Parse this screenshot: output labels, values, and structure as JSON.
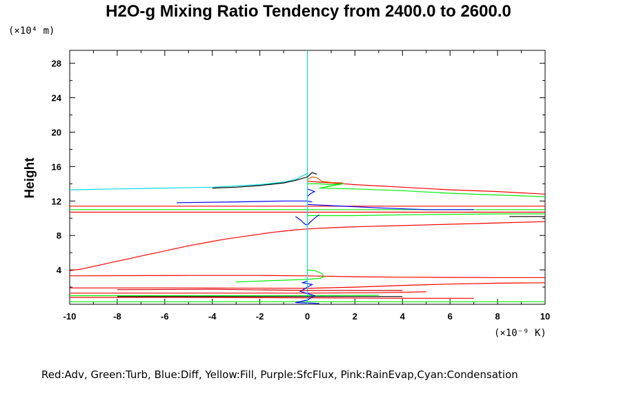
{
  "chart_data": {
    "type": "line",
    "title": "H2O-g Mixing Ratio Tendency from 2400.0 to 2600.0",
    "ylabel": "Height",
    "y_scale_label": "(×10⁴ m)",
    "x_scale_label": "(×10⁻⁹ K)",
    "legend_text": "Red:Adv, Green:Turb, Blue:Diff, Yellow:Fill, Purple:SfcFlux, Pink:RainEvap,Cyan:Condensation",
    "xlim": [
      -10,
      10
    ],
    "ylim": [
      0,
      29.5
    ],
    "x_ticks": [
      -10,
      -8,
      -6,
      -4,
      -2,
      0,
      2,
      4,
      6,
      8,
      10
    ],
    "y_ticks": [
      4,
      8,
      12,
      16,
      20,
      24,
      28
    ],
    "x_tick_labels": [
      "-10",
      "-8",
      "-6",
      "-4",
      "-2",
      "0",
      "2",
      "4",
      "6",
      "8",
      "10"
    ],
    "y_tick_labels": [
      "4",
      "8",
      "12",
      "16",
      "20",
      "24",
      "28"
    ],
    "grid": false,
    "series": [
      {
        "color": "#ff0000",
        "points": [
          [
            -10,
            3.9
          ],
          [
            -9.5,
            4.1
          ],
          [
            -9,
            4.4
          ],
          [
            -8.5,
            4.7
          ],
          [
            -8,
            5.0
          ],
          [
            -7.5,
            5.3
          ],
          [
            -7,
            5.6
          ],
          [
            -6.5,
            5.9
          ],
          [
            -6,
            6.2
          ],
          [
            -5.5,
            6.5
          ],
          [
            -5,
            6.8
          ],
          [
            -4.5,
            7.05
          ],
          [
            -4,
            7.3
          ],
          [
            -3.5,
            7.55
          ],
          [
            -3,
            7.75
          ],
          [
            -2.5,
            7.95
          ],
          [
            -2,
            8.15
          ],
          [
            -1.5,
            8.35
          ],
          [
            -1,
            8.5
          ],
          [
            -0.5,
            8.65
          ],
          [
            0,
            8.75
          ],
          [
            1,
            8.9
          ],
          [
            2,
            9.0
          ],
          [
            4,
            9.15
          ],
          [
            6,
            9.3
          ],
          [
            8,
            9.45
          ],
          [
            10,
            9.6
          ]
        ]
      },
      {
        "color": "#ff0000",
        "points": [
          [
            -10,
            3.3
          ],
          [
            -5,
            3.35
          ],
          [
            -2,
            3.35
          ],
          [
            0,
            3.3
          ],
          [
            2,
            3.2
          ],
          [
            4,
            3.15
          ],
          [
            6,
            3.12
          ],
          [
            8,
            3.1
          ],
          [
            10,
            3.1
          ]
        ]
      },
      {
        "color": "#ff0000",
        "points": [
          [
            0,
            14.3
          ],
          [
            1,
            14.1
          ],
          [
            2,
            13.9
          ],
          [
            4,
            13.6
          ],
          [
            6,
            13.3
          ],
          [
            8,
            13.1
          ],
          [
            10,
            12.8
          ]
        ]
      },
      {
        "color": "#ff0000",
        "points": [
          [
            -10,
            11.4
          ],
          [
            -5,
            11.4
          ],
          [
            0,
            11.4
          ],
          [
            5,
            11.4
          ],
          [
            10,
            11.4
          ]
        ]
      },
      {
        "color": "#ff0000",
        "points": [
          [
            -10,
            10.7
          ],
          [
            -5,
            10.7
          ],
          [
            0,
            10.7
          ],
          [
            5,
            10.7
          ],
          [
            10,
            10.7
          ]
        ]
      },
      {
        "color": "#ff0000",
        "points": [
          [
            -10,
            1.9
          ],
          [
            -5,
            1.9
          ],
          [
            0,
            1.85
          ],
          [
            2,
            2.0
          ],
          [
            4,
            2.2
          ],
          [
            6,
            2.35
          ],
          [
            8,
            2.45
          ],
          [
            10,
            2.5
          ]
        ]
      },
      {
        "color": "#ff0000",
        "points": [
          [
            -10,
            1.3
          ],
          [
            -5,
            1.3
          ],
          [
            0,
            1.3
          ],
          [
            3,
            1.35
          ],
          [
            5,
            1.45
          ]
        ]
      },
      {
        "color": "#ff0000",
        "points": [
          [
            -10,
            0.8
          ],
          [
            -5,
            0.8
          ],
          [
            0,
            0.75
          ],
          [
            4,
            0.7
          ],
          [
            7,
            0.7
          ]
        ]
      },
      {
        "color": "#00ee00",
        "points": [
          [
            0,
            14.0
          ],
          [
            0.5,
            14.0
          ],
          [
            1,
            13.9
          ],
          [
            1.5,
            14.0
          ],
          [
            0.5,
            13.5
          ],
          [
            2,
            13.4
          ],
          [
            4,
            13.2
          ],
          [
            6,
            12.9
          ],
          [
            8,
            12.7
          ],
          [
            10,
            12.5
          ]
        ]
      },
      {
        "color": "#00ee00",
        "points": [
          [
            -10,
            11.0
          ],
          [
            -5,
            11.0
          ],
          [
            0,
            11.0
          ],
          [
            5,
            11.0
          ],
          [
            10,
            11.0
          ]
        ]
      },
      {
        "color": "#00ee00",
        "points": [
          [
            0,
            10.3
          ],
          [
            2,
            10.3
          ],
          [
            4,
            10.4
          ],
          [
            6,
            10.45
          ],
          [
            8,
            10.5
          ],
          [
            10,
            10.5
          ]
        ]
      },
      {
        "color": "#00ee00",
        "points": [
          [
            0,
            4.0
          ],
          [
            0.3,
            3.9
          ],
          [
            0.6,
            3.6
          ],
          [
            0.7,
            3.2
          ],
          [
            0.5,
            3.0
          ],
          [
            0,
            2.9
          ]
        ]
      },
      {
        "color": "#00ee00",
        "points": [
          [
            0,
            2.9
          ],
          [
            -1,
            2.8
          ],
          [
            -2,
            2.7
          ],
          [
            -3,
            2.6
          ]
        ]
      },
      {
        "color": "#00ee00",
        "points": [
          [
            -10,
            1.0
          ],
          [
            -5,
            1.0
          ],
          [
            0,
            1.0
          ],
          [
            3,
            1.05
          ]
        ]
      },
      {
        "color": "#00ee00",
        "points": [
          [
            -10,
            0.3
          ],
          [
            -5,
            0.3
          ],
          [
            0,
            0.3
          ],
          [
            5,
            0.3
          ],
          [
            10,
            0.3
          ]
        ]
      },
      {
        "color": "#0000ff",
        "points": [
          [
            -5.5,
            11.8
          ],
          [
            -3,
            11.9
          ],
          [
            -1,
            12.0
          ],
          [
            0,
            12.0
          ],
          [
            0.2,
            11.9
          ]
        ]
      },
      {
        "color": "#0000ff",
        "points": [
          [
            0,
            11.6
          ],
          [
            3,
            11.2
          ],
          [
            5,
            11.0
          ],
          [
            7,
            11.0
          ]
        ]
      },
      {
        "color": "#0000ff",
        "points": [
          [
            -0.5,
            10.2
          ],
          [
            -0.3,
            9.8
          ],
          [
            -0.1,
            9.3
          ],
          [
            0,
            9.2
          ],
          [
            0.1,
            9.5
          ],
          [
            0.3,
            10.0
          ],
          [
            0.5,
            10.4
          ]
        ]
      },
      {
        "color": "#0000ff",
        "points": [
          [
            0,
            12.5
          ],
          [
            0.1,
            12.8
          ],
          [
            0.3,
            13.1
          ],
          [
            0.1,
            13.3
          ],
          [
            0,
            13.4
          ]
        ]
      },
      {
        "color": "#0000ff",
        "points": [
          [
            0,
            2.7
          ],
          [
            -0.2,
            2.5
          ],
          [
            0.2,
            2.3
          ],
          [
            0,
            2.0
          ],
          [
            -0.3,
            1.5
          ],
          [
            0.3,
            1.0
          ],
          [
            0,
            0.5
          ],
          [
            -0.5,
            0.2
          ],
          [
            0.5,
            0.1
          ]
        ]
      },
      {
        "color": "#00dddd",
        "points": [
          [
            -10,
            13.3
          ],
          [
            -8,
            13.4
          ],
          [
            -6,
            13.5
          ],
          [
            -4,
            13.6
          ],
          [
            -2,
            13.9
          ],
          [
            -1,
            14.2
          ],
          [
            -0.5,
            14.5
          ],
          [
            0,
            15.2
          ],
          [
            0,
            29.5
          ]
        ]
      },
      {
        "color": "#00dddd",
        "points": [
          [
            0,
            15.2
          ],
          [
            0,
            3.0
          ],
          [
            0,
            0
          ]
        ]
      },
      {
        "color": "#000000",
        "points": [
          [
            -4,
            13.5
          ],
          [
            -3,
            13.6
          ],
          [
            -2,
            13.8
          ],
          [
            -1,
            14.1
          ],
          [
            -0.5,
            14.4
          ],
          [
            0,
            14.8
          ],
          [
            0.2,
            15.3
          ],
          [
            0.4,
            15.1
          ]
        ]
      },
      {
        "color": "#000000",
        "points": [
          [
            -8,
            0.9
          ],
          [
            -4,
            0.9
          ],
          [
            0,
            0.9
          ],
          [
            4,
            0.9
          ]
        ]
      },
      {
        "color": "#cc0000",
        "points": [
          [
            -8,
            1.7
          ],
          [
            -4,
            1.75
          ],
          [
            0,
            1.6
          ],
          [
            4,
            1.6
          ]
        ]
      },
      {
        "color": "#cc6600",
        "points": [
          [
            0,
            14.5
          ],
          [
            0.2,
            14.8
          ],
          [
            0.4,
            14.7
          ],
          [
            0.6,
            14.3
          ],
          [
            1,
            14.15
          ],
          [
            1.5,
            14.1
          ]
        ]
      },
      {
        "color": "#000000",
        "points": [
          [
            8.5,
            10.2
          ],
          [
            10,
            10.2
          ]
        ]
      }
    ]
  }
}
